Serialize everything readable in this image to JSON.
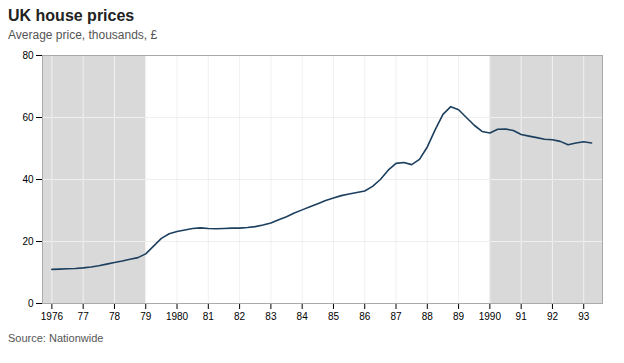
{
  "chart_data": {
    "type": "line",
    "title": "UK house prices",
    "subtitle": "Average price, thousands, £",
    "source": "Source: Nationwide",
    "color": "#1c3f5e",
    "grid": true,
    "shaded_regions": [
      [
        1975.7,
        1979.0
      ],
      [
        1990.0,
        1993.6
      ]
    ],
    "xlim": [
      1975.7,
      1993.6
    ],
    "xticks": [
      1976,
      {
        "value": 1977,
        "label": "77"
      },
      {
        "value": 1978,
        "label": "78"
      },
      {
        "value": 1979,
        "label": "79"
      },
      1980,
      {
        "value": 1981,
        "label": "81"
      },
      {
        "value": 1982,
        "label": "82"
      },
      {
        "value": 1983,
        "label": "83"
      },
      {
        "value": 1984,
        "label": "84"
      },
      {
        "value": 1985,
        "label": "85"
      },
      {
        "value": 1986,
        "label": "86"
      },
      {
        "value": 1987,
        "label": "87"
      },
      {
        "value": 1988,
        "label": "88"
      },
      {
        "value": 1989,
        "label": "89"
      },
      1990,
      {
        "value": 1991,
        "label": "91"
      },
      {
        "value": 1992,
        "label": "92"
      },
      {
        "value": 1993,
        "label": "93"
      }
    ],
    "ylim": [
      0,
      80
    ],
    "yticks": [
      0,
      20,
      40,
      60,
      80
    ],
    "x": [
      1976.0,
      1976.25,
      1976.5,
      1976.75,
      1977.0,
      1977.25,
      1977.5,
      1977.75,
      1978.0,
      1978.25,
      1978.5,
      1978.75,
      1979.0,
      1979.25,
      1979.5,
      1979.75,
      1980.0,
      1980.25,
      1980.5,
      1980.75,
      1981.0,
      1981.25,
      1981.5,
      1981.75,
      1982.0,
      1982.25,
      1982.5,
      1982.75,
      1983.0,
      1983.25,
      1983.5,
      1983.75,
      1984.0,
      1984.25,
      1984.5,
      1984.75,
      1985.0,
      1985.25,
      1985.5,
      1985.75,
      1986.0,
      1986.25,
      1986.5,
      1986.75,
      1987.0,
      1987.25,
      1987.5,
      1987.75,
      1988.0,
      1988.25,
      1988.5,
      1988.75,
      1989.0,
      1989.25,
      1989.5,
      1989.75,
      1990.0,
      1990.25,
      1990.5,
      1990.75,
      1991.0,
      1991.25,
      1991.5,
      1991.75,
      1992.0,
      1992.25,
      1992.5,
      1992.75,
      1993.0,
      1993.25
    ],
    "values": [
      11.0,
      11.1,
      11.2,
      11.3,
      11.5,
      11.8,
      12.2,
      12.7,
      13.2,
      13.7,
      14.3,
      14.8,
      16.0,
      18.5,
      21.0,
      22.5,
      23.2,
      23.7,
      24.2,
      24.4,
      24.2,
      24.1,
      24.2,
      24.3,
      24.3,
      24.5,
      24.8,
      25.3,
      26.0,
      27.0,
      28.0,
      29.2,
      30.2,
      31.2,
      32.2,
      33.2,
      34.0,
      34.8,
      35.3,
      35.8,
      36.3,
      37.8,
      40.0,
      43.0,
      45.2,
      45.5,
      44.8,
      46.5,
      50.5,
      56.0,
      61.0,
      63.5,
      62.5,
      60.0,
      57.5,
      55.5,
      55.0,
      56.2,
      56.3,
      55.8,
      54.5,
      54.0,
      53.5,
      53.0,
      52.8,
      52.3,
      51.2,
      51.8,
      52.2,
      51.8
    ]
  }
}
